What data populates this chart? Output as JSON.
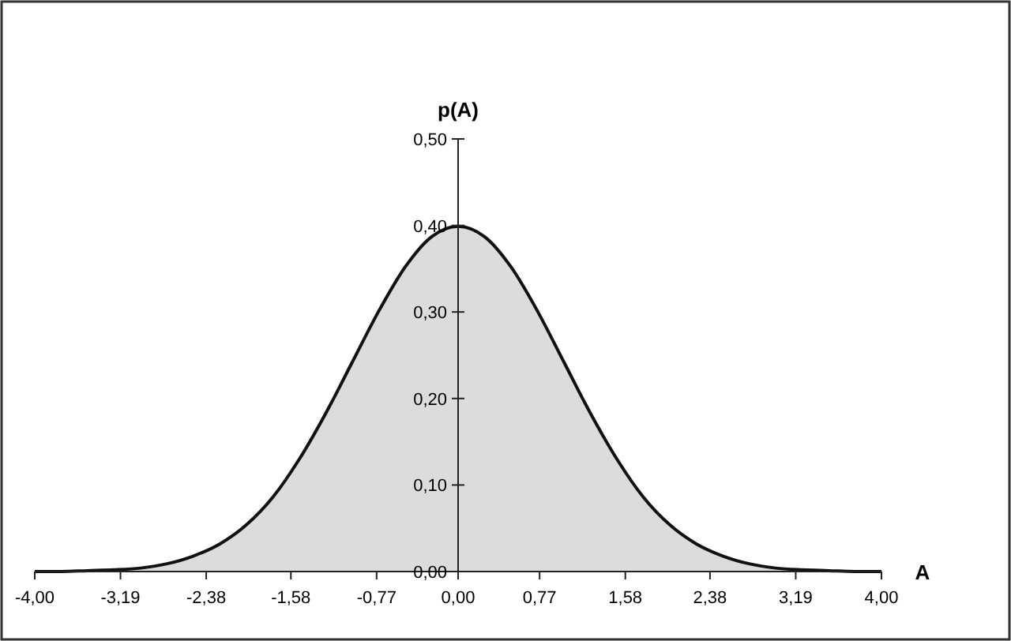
{
  "chart_data": {
    "type": "area",
    "xlabel": "A",
    "ylabel": "p(A)",
    "color": "#dcdcdc",
    "x": [
      -4,
      -3.75,
      -3.5,
      -3.25,
      -3,
      -2.75,
      -2.5,
      -2.25,
      -2,
      -1.75,
      -1.5,
      -1.25,
      -1,
      -0.75,
      -0.5,
      -0.25,
      0,
      0.25,
      0.5,
      0.75,
      1,
      1.25,
      1.5,
      1.75,
      2,
      2.25,
      2.5,
      2.75,
      3,
      3.25,
      3.5,
      3.75,
      4
    ],
    "values": [
      0,
      0,
      0.001,
      0.002,
      0.004,
      0.009,
      0.018,
      0.032,
      0.054,
      0.086,
      0.13,
      0.183,
      0.242,
      0.301,
      0.352,
      0.387,
      0.399,
      0.387,
      0.352,
      0.301,
      0.242,
      0.183,
      0.13,
      0.086,
      0.054,
      0.032,
      0.018,
      0.009,
      0.004,
      0.002,
      0.001,
      0,
      0
    ],
    "xlim": [
      -4,
      4
    ],
    "xticks": [
      {
        "value": -4,
        "label": "-4,00"
      },
      {
        "value": -3.19,
        "label": "-3,19"
      },
      {
        "value": -2.38,
        "label": "-2,38"
      },
      {
        "value": -1.58,
        "label": "-1,58"
      },
      {
        "value": -0.77,
        "label": "-0,77"
      },
      {
        "value": 0,
        "label": "0,00"
      },
      {
        "value": 0.77,
        "label": "0,77"
      },
      {
        "value": 1.58,
        "label": "1,58"
      },
      {
        "value": 2.38,
        "label": "2,38"
      },
      {
        "value": 3.19,
        "label": "3,19"
      },
      {
        "value": 4,
        "label": "4,00"
      }
    ],
    "ylim": [
      0,
      0.5
    ],
    "yticks": [
      {
        "value": 0,
        "label": "0,00"
      },
      {
        "value": 0.1,
        "label": "0,10"
      },
      {
        "value": 0.2,
        "label": "0,20"
      },
      {
        "value": 0.3,
        "label": "0,30"
      },
      {
        "value": 0.4,
        "label": "0,40"
      },
      {
        "value": 0.5,
        "label": "0,50"
      }
    ]
  }
}
